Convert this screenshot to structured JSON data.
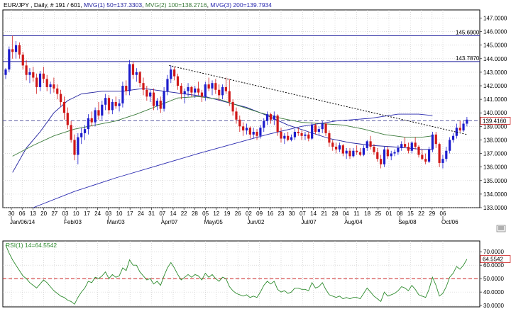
{
  "header": {
    "symbol": "EUR/JPY",
    "interval": "Daily",
    "bar_info": "# 191 / 601",
    "mvg1": "MVG(1) 50=137.3303",
    "mvg2": "MVG(2) 100=138.2716",
    "mvg3": "MVG(3) 200=139.7934"
  },
  "colors": {
    "up": "#1c1ccc",
    "down": "#d01818",
    "mvg1": "#1c1c9c",
    "mvg2": "#3a7a3a",
    "mvg3": "#2a2ab0",
    "hline": "#1c1c9c",
    "current": "#5a5aa0",
    "rsi": "#2e8b2e",
    "rsi_mid": "#cc2020",
    "grid": "#c8c8c8",
    "trendline": "#000000"
  },
  "chart_data": {
    "type": "candlestick",
    "x_ticks": [
      "30",
      "06",
      "13",
      "20",
      "27",
      "03",
      "10",
      "17",
      "24",
      "03",
      "10",
      "17",
      "24",
      "31",
      "07",
      "14",
      "22",
      "28",
      "05",
      "12",
      "19",
      "26",
      "02",
      "09",
      "16",
      "23",
      "30",
      "07",
      "14",
      "21",
      "28",
      "04",
      "11",
      "18",
      "25",
      "01",
      "08",
      "15",
      "22",
      "29",
      "06"
    ],
    "x_month_labels": [
      {
        "label": "Jan/06/14",
        "index": 0
      },
      {
        "label": "Feb/03",
        "index": 5
      },
      {
        "label": "Mar/03",
        "index": 9
      },
      {
        "label": "Apr/07",
        "index": 14
      },
      {
        "label": "May/05",
        "index": 18
      },
      {
        "label": "Jun/02",
        "index": 22
      },
      {
        "label": "Jul/07",
        "index": 27
      },
      {
        "label": "Aug/04",
        "index": 31
      },
      {
        "label": "Sep/08",
        "index": 36
      },
      {
        "label": "Oct/06",
        "index": 40
      }
    ],
    "y_ticks": [
      "147.0000",
      "146.0000",
      "145.0000",
      "144.0000",
      "143.0000",
      "142.0000",
      "141.0000",
      "140.0000",
      "139.0000",
      "138.0000",
      "137.0000",
      "136.0000",
      "135.0000",
      "134.0000",
      "133.0000"
    ],
    "ylim": [
      133,
      147.6
    ],
    "candles": [
      [
        142.8,
        143.3,
        142.5,
        143.2
      ],
      [
        143.2,
        144.9,
        143.0,
        144.7
      ],
      [
        144.7,
        145.7,
        144.0,
        144.5
      ],
      [
        144.5,
        145.3,
        144.0,
        145.0
      ],
      [
        145.0,
        145.2,
        144.0,
        144.3
      ],
      [
        144.3,
        144.5,
        143.2,
        143.5
      ],
      [
        143.5,
        143.9,
        142.4,
        142.8
      ],
      [
        142.8,
        143.3,
        142.2,
        143.0
      ],
      [
        143.0,
        143.4,
        142.3,
        142.6
      ],
      [
        142.6,
        142.9,
        141.4,
        141.9
      ],
      [
        141.9,
        143.1,
        141.6,
        142.9
      ],
      [
        142.9,
        143.4,
        142.2,
        142.5
      ],
      [
        142.5,
        142.8,
        141.6,
        141.9
      ],
      [
        141.9,
        142.3,
        141.4,
        142.1
      ],
      [
        142.1,
        142.6,
        141.5,
        141.8
      ],
      [
        141.8,
        142.1,
        141.0,
        141.4
      ],
      [
        141.4,
        141.7,
        140.5,
        140.8
      ],
      [
        140.8,
        141.2,
        139.5,
        140.0
      ],
      [
        140.0,
        140.4,
        138.8,
        139.1
      ],
      [
        139.1,
        139.4,
        137.8,
        138.0
      ],
      [
        138.0,
        138.4,
        136.5,
        136.9
      ],
      [
        136.9,
        138.5,
        136.2,
        138.2
      ],
      [
        138.2,
        138.9,
        137.7,
        138.5
      ],
      [
        138.5,
        139.1,
        138.0,
        138.8
      ],
      [
        138.8,
        139.9,
        138.4,
        139.6
      ],
      [
        139.6,
        140.1,
        139.0,
        139.3
      ],
      [
        139.3,
        140.4,
        139.0,
        140.2
      ],
      [
        140.2,
        140.8,
        139.5,
        139.8
      ],
      [
        139.8,
        140.9,
        139.5,
        140.6
      ],
      [
        140.6,
        141.4,
        140.2,
        141.1
      ],
      [
        141.1,
        141.3,
        139.9,
        140.2
      ],
      [
        140.2,
        141.0,
        139.9,
        140.8
      ],
      [
        140.8,
        141.2,
        140.3,
        140.5
      ],
      [
        140.5,
        141.0,
        140.1,
        140.7
      ],
      [
        140.7,
        142.3,
        140.4,
        142.0
      ],
      [
        142.0,
        142.4,
        141.3,
        141.6
      ],
      [
        141.6,
        143.9,
        141.3,
        143.6
      ],
      [
        143.6,
        143.8,
        142.5,
        142.8
      ],
      [
        142.8,
        143.3,
        142.3,
        143.0
      ],
      [
        143.0,
        143.1,
        141.9,
        142.2
      ],
      [
        142.2,
        142.6,
        141.3,
        141.7
      ],
      [
        141.7,
        142.0,
        140.9,
        141.2
      ],
      [
        141.2,
        141.7,
        140.8,
        141.5
      ],
      [
        141.5,
        141.8,
        140.2,
        140.5
      ],
      [
        140.5,
        141.1,
        140.2,
        140.9
      ],
      [
        140.9,
        141.2,
        140.0,
        140.3
      ],
      [
        140.3,
        141.9,
        140.1,
        141.6
      ],
      [
        141.6,
        142.8,
        141.3,
        142.5
      ],
      [
        142.5,
        143.5,
        142.2,
        143.2
      ],
      [
        143.2,
        143.4,
        142.4,
        142.7
      ],
      [
        142.7,
        142.9,
        141.7,
        142.0
      ],
      [
        142.0,
        142.2,
        141.0,
        141.4
      ],
      [
        141.4,
        141.8,
        140.7,
        141.6
      ],
      [
        141.6,
        142.2,
        141.2,
        141.9
      ],
      [
        141.9,
        142.0,
        141.2,
        141.5
      ],
      [
        141.5,
        142.0,
        141.1,
        141.8
      ],
      [
        141.8,
        142.3,
        141.3,
        141.5
      ],
      [
        141.5,
        141.7,
        140.8,
        141.2
      ],
      [
        141.2,
        142.3,
        140.9,
        142.1
      ],
      [
        142.1,
        142.6,
        141.6,
        141.8
      ],
      [
        141.8,
        142.4,
        141.3,
        142.2
      ],
      [
        142.2,
        142.5,
        141.4,
        141.7
      ],
      [
        141.7,
        142.1,
        140.9,
        141.3
      ],
      [
        141.3,
        142.1,
        141.0,
        141.9
      ],
      [
        141.9,
        142.6,
        141.4,
        141.6
      ],
      [
        141.6,
        142.5,
        140.5,
        140.8
      ],
      [
        140.8,
        141.0,
        139.8,
        140.1
      ],
      [
        140.1,
        140.4,
        139.2,
        139.5
      ],
      [
        139.5,
        139.8,
        138.6,
        139.0
      ],
      [
        139.0,
        139.3,
        138.3,
        138.7
      ],
      [
        138.7,
        139.2,
        138.4,
        138.9
      ],
      [
        138.9,
        139.0,
        138.1,
        138.4
      ],
      [
        138.4,
        138.9,
        138.1,
        138.6
      ],
      [
        138.6,
        138.8,
        138.0,
        138.3
      ],
      [
        138.3,
        139.1,
        138.1,
        138.9
      ],
      [
        138.9,
        139.6,
        138.6,
        139.4
      ],
      [
        139.4,
        140.1,
        139.1,
        139.9
      ],
      [
        139.9,
        140.0,
        139.2,
        139.5
      ],
      [
        139.5,
        140.1,
        139.1,
        139.8
      ],
      [
        139.8,
        139.9,
        138.3,
        138.6
      ],
      [
        138.6,
        138.9,
        137.8,
        138.1
      ],
      [
        138.1,
        138.5,
        137.7,
        138.3
      ],
      [
        138.3,
        138.6,
        137.9,
        138.0
      ],
      [
        138.0,
        138.4,
        137.9,
        138.2
      ],
      [
        138.2,
        138.8,
        138.0,
        138.6
      ],
      [
        138.6,
        138.9,
        138.3,
        138.5
      ],
      [
        138.5,
        138.7,
        138.0,
        138.3
      ],
      [
        138.3,
        138.6,
        138.0,
        138.4
      ],
      [
        138.4,
        138.6,
        137.9,
        138.1
      ],
      [
        138.1,
        139.3,
        138.0,
        139.1
      ],
      [
        139.1,
        139.2,
        138.4,
        138.6
      ],
      [
        138.6,
        139.0,
        138.3,
        138.8
      ],
      [
        138.8,
        139.4,
        138.5,
        139.2
      ],
      [
        139.2,
        139.3,
        138.3,
        138.5
      ],
      [
        138.5,
        138.7,
        137.5,
        137.8
      ],
      [
        137.8,
        138.0,
        137.2,
        137.5
      ],
      [
        137.5,
        137.8,
        137.0,
        137.3
      ],
      [
        137.3,
        137.8,
        137.1,
        137.6
      ],
      [
        137.6,
        137.7,
        136.8,
        137.0
      ],
      [
        137.0,
        137.4,
        136.6,
        137.2
      ],
      [
        137.2,
        137.4,
        136.6,
        136.8
      ],
      [
        136.8,
        137.4,
        136.7,
        137.2
      ],
      [
        137.2,
        137.6,
        136.9,
        137.1
      ],
      [
        137.1,
        137.4,
        136.8,
        136.9
      ],
      [
        136.9,
        137.6,
        136.8,
        137.4
      ],
      [
        137.4,
        138.0,
        137.2,
        137.9
      ],
      [
        137.9,
        138.3,
        137.3,
        137.5
      ],
      [
        137.5,
        137.7,
        136.9,
        137.1
      ],
      [
        137.1,
        137.4,
        136.4,
        136.6
      ],
      [
        136.6,
        136.9,
        135.9,
        136.2
      ],
      [
        136.2,
        137.5,
        136.0,
        137.3
      ],
      [
        137.3,
        137.5,
        136.6,
        136.8
      ],
      [
        136.8,
        137.2,
        136.5,
        137.0
      ],
      [
        137.0,
        137.3,
        136.8,
        137.1
      ],
      [
        137.1,
        137.6,
        136.9,
        137.4
      ],
      [
        137.4,
        137.9,
        137.2,
        137.7
      ],
      [
        137.7,
        138.2,
        137.4,
        137.5
      ],
      [
        137.5,
        137.8,
        137.0,
        137.2
      ],
      [
        137.2,
        137.9,
        137.0,
        137.8
      ],
      [
        137.8,
        138.2,
        137.3,
        137.5
      ],
      [
        137.5,
        137.6,
        136.7,
        136.9
      ],
      [
        136.9,
        137.3,
        136.5,
        136.6
      ],
      [
        136.6,
        137.0,
        136.2,
        136.4
      ],
      [
        136.4,
        137.5,
        136.3,
        137.3
      ],
      [
        137.3,
        138.6,
        137.1,
        138.4
      ],
      [
        138.4,
        138.6,
        137.4,
        137.7
      ],
      [
        137.7,
        137.8,
        136.0,
        136.3
      ],
      [
        136.3,
        136.9,
        135.9,
        136.6
      ],
      [
        136.6,
        137.5,
        136.4,
        137.2
      ],
      [
        137.2,
        138.2,
        137.0,
        138.0
      ],
      [
        138.0,
        138.5,
        137.8,
        138.3
      ],
      [
        138.3,
        139.2,
        138.1,
        138.9
      ],
      [
        138.9,
        139.4,
        138.6,
        138.7
      ],
      [
        138.7,
        139.4,
        138.6,
        139.2
      ],
      [
        139.2,
        139.7,
        139.0,
        139.5
      ]
    ],
    "series": [
      {
        "name": "MVG(1) 50",
        "points": [
          [
            2,
            135.6
          ],
          [
            6,
            137.4
          ],
          [
            10,
            138.6
          ],
          [
            14,
            140.0
          ],
          [
            18,
            140.9
          ],
          [
            22,
            141.4
          ],
          [
            28,
            141.6
          ],
          [
            34,
            141.6
          ],
          [
            40,
            141.8
          ],
          [
            46,
            141.6
          ],
          [
            52,
            141.4
          ],
          [
            58,
            141.2
          ],
          [
            64,
            140.8
          ],
          [
            70,
            140.4
          ],
          [
            76,
            139.8
          ],
          [
            82,
            139.1
          ],
          [
            88,
            138.6
          ],
          [
            94,
            138.1
          ],
          [
            100,
            137.8
          ],
          [
            106,
            137.6
          ],
          [
            112,
            137.5
          ],
          [
            117,
            137.4
          ],
          [
            121,
            137.3
          ],
          [
            124,
            137.3
          ]
        ]
      },
      {
        "name": "MVG(2) 100",
        "points": [
          [
            2,
            136.8
          ],
          [
            8,
            137.6
          ],
          [
            14,
            138.3
          ],
          [
            20,
            138.8
          ],
          [
            26,
            139.1
          ],
          [
            32,
            139.4
          ],
          [
            38,
            139.9
          ],
          [
            44,
            140.5
          ],
          [
            50,
            141.1
          ],
          [
            56,
            141.2
          ],
          [
            62,
            141.0
          ],
          [
            68,
            140.5
          ],
          [
            74,
            140.0
          ],
          [
            80,
            139.6
          ],
          [
            86,
            139.3
          ],
          [
            92,
            139.2
          ],
          [
            98,
            139.1
          ],
          [
            104,
            138.8
          ],
          [
            110,
            138.4
          ],
          [
            116,
            138.2
          ],
          [
            121,
            138.2
          ],
          [
            124,
            138.3
          ]
        ]
      },
      {
        "name": "MVG(3) 200",
        "points": [
          [
            8,
            133.0
          ],
          [
            20,
            134.2
          ],
          [
            32,
            135.2
          ],
          [
            44,
            136.1
          ],
          [
            56,
            137.0
          ],
          [
            66,
            137.7
          ],
          [
            76,
            138.4
          ],
          [
            86,
            139.0
          ],
          [
            96,
            139.4
          ],
          [
            106,
            139.6
          ],
          [
            114,
            139.9
          ],
          [
            120,
            139.9
          ],
          [
            124,
            139.8
          ]
        ]
      }
    ],
    "hlines": [
      {
        "label": "145.6900",
        "value": 145.69
      },
      {
        "label": "143.7870",
        "value": 143.787
      }
    ],
    "current": {
      "label": "139.4160",
      "value": 139.416
    },
    "trendline": {
      "from": [
        47.5,
        143.5
      ],
      "to": [
        134,
        138.4
      ]
    }
  },
  "rsi": {
    "label": "RSI(1) 14=64.5542",
    "current_label": "64.5542",
    "current": 64.55,
    "ylim": [
      29,
      78
    ],
    "y_ticks": [
      "70.0000",
      "60.0000",
      "50.0000",
      "40.0000",
      "30.0000"
    ],
    "values": [
      75,
      69,
      64,
      60,
      56,
      52,
      50,
      47,
      45,
      43,
      46,
      49,
      47,
      44,
      41,
      39,
      37,
      36,
      34,
      33,
      31,
      36,
      40,
      43,
      48,
      47,
      51,
      50,
      52,
      55,
      50,
      53,
      51,
      52,
      58,
      56,
      64,
      60,
      60,
      55,
      52,
      49,
      50,
      46,
      48,
      45,
      52,
      58,
      62,
      58,
      53,
      49,
      51,
      53,
      51,
      53,
      52,
      49,
      54,
      51,
      53,
      50,
      48,
      51,
      50,
      44,
      41,
      39,
      38,
      37,
      38,
      36,
      37,
      36,
      40,
      45,
      48,
      46,
      48,
      42,
      40,
      41,
      39,
      40,
      43,
      43,
      42,
      42,
      41,
      47,
      43,
      44,
      47,
      42,
      38,
      37,
      36,
      37,
      35,
      36,
      35,
      36,
      36,
      35,
      39,
      43,
      40,
      37,
      35,
      33,
      40,
      37,
      38,
      39,
      41,
      44,
      43,
      41,
      45,
      42,
      38,
      37,
      36,
      42,
      51,
      45,
      37,
      39,
      44,
      51,
      54,
      59,
      57,
      60,
      64.5
    ]
  }
}
